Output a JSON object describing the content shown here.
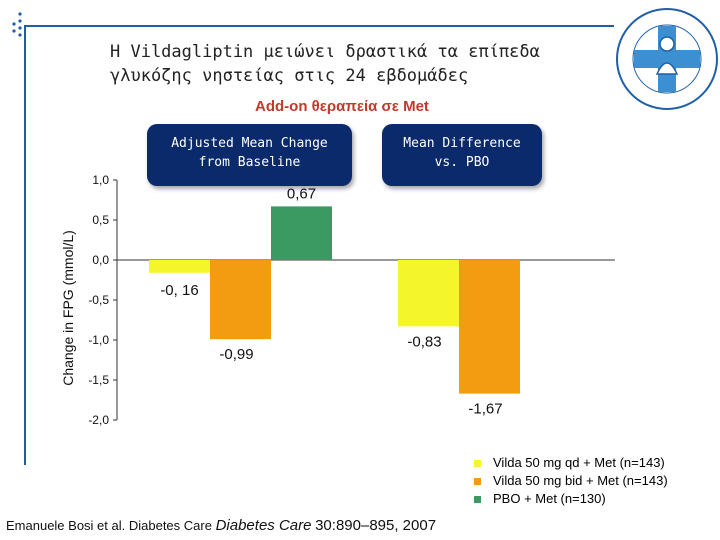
{
  "slide": {
    "title_line1": "Η Vildagliptin μειώνει δραστικά τα επίπεδα",
    "title_line2": "γλυκόζης νηστείας στις 24 εβδομάδες",
    "subtitle": "Add-on θεραπεία σε Met",
    "callout_adjusted_line1": "Adjusted Mean Change",
    "callout_adjusted_line2": "from Baseline",
    "callout_mean_line1": "Mean Difference",
    "callout_mean_line2": "vs. PBO",
    "citation_authors": "Emanuele Bosi et al. Diabetes Care",
    "citation_journal": "Diabetes Care",
    "citation_ref": "30:890–895, 2007"
  },
  "colors": {
    "accent_blue": "#1e5fa8",
    "callout_bg": "#0b2a6b",
    "subtitle_red": "#c0392b"
  },
  "chart_data": {
    "type": "bar",
    "ylabel": "Change in FPG (mmol/L)",
    "ylim": [
      -2.0,
      1.0
    ],
    "yticks": [
      1.0,
      0.5,
      0.0,
      -0.5,
      -1.0,
      -1.5,
      -2.0
    ],
    "ytick_labels": [
      "1,0",
      "0,5",
      "0,0",
      "-0,5",
      "-1,0",
      "-1,5",
      "-2,0"
    ],
    "groups": [
      "Adjusted Mean Change from Baseline",
      "Mean Difference vs. PBO"
    ],
    "series": [
      {
        "name": "Vilda 50 mg qd + Met (n=143)",
        "color": "#f5f52c",
        "values": [
          -0.16,
          -0.83
        ],
        "labels": [
          "-0, 16",
          "-0,83"
        ]
      },
      {
        "name": "Vilda 50 mg bid + Met (n=143)",
        "color": "#f39c12",
        "values": [
          -0.99,
          -1.67
        ],
        "labels": [
          "-0,99",
          "-1,67"
        ]
      },
      {
        "name": "PBO + Met (n=130)",
        "color": "#3a9a62",
        "values": [
          0.67,
          null
        ],
        "labels": [
          "0,67",
          ""
        ]
      }
    ]
  }
}
